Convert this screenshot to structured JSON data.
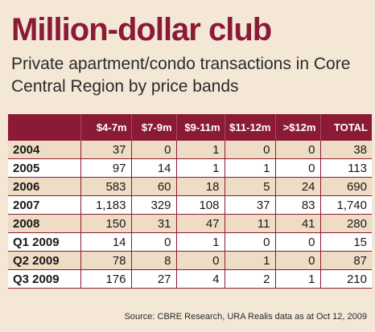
{
  "title": "Million-dollar club",
  "subtitle": "Private apartment/condo transactions in Core Central Region by price bands",
  "source": "Source: CBRE Research, URA Realis data as at Oct 12, 2009",
  "colors": {
    "accent": "#8a1a36",
    "band": "#efdcc4",
    "background": "#f4e7d6"
  },
  "chart_data": {
    "type": "table",
    "columns": [
      "",
      "$4-7m",
      "$7-9m",
      "$9-11m",
      "$11-12m",
      ">$12m",
      "TOTAL"
    ],
    "rows": [
      {
        "label": "2004",
        "values": [
          "37",
          "0",
          "1",
          "0",
          "0",
          "38"
        ]
      },
      {
        "label": "2005",
        "values": [
          "97",
          "14",
          "1",
          "1",
          "0",
          "113"
        ]
      },
      {
        "label": "2006",
        "values": [
          "583",
          "60",
          "18",
          "5",
          "24",
          "690"
        ]
      },
      {
        "label": "2007",
        "values": [
          "1,183",
          "329",
          "108",
          "37",
          "83",
          "1,740"
        ]
      },
      {
        "label": "2008",
        "values": [
          "150",
          "31",
          "47",
          "11",
          "41",
          "280"
        ]
      },
      {
        "label": "Q1 2009",
        "values": [
          "14",
          "0",
          "1",
          "0",
          "0",
          "15"
        ]
      },
      {
        "label": "Q2 2009",
        "values": [
          "78",
          "8",
          "0",
          "1",
          "0",
          "87"
        ]
      },
      {
        "label": "Q3 2009",
        "values": [
          "176",
          "27",
          "4",
          "2",
          "1",
          "210"
        ]
      }
    ]
  }
}
